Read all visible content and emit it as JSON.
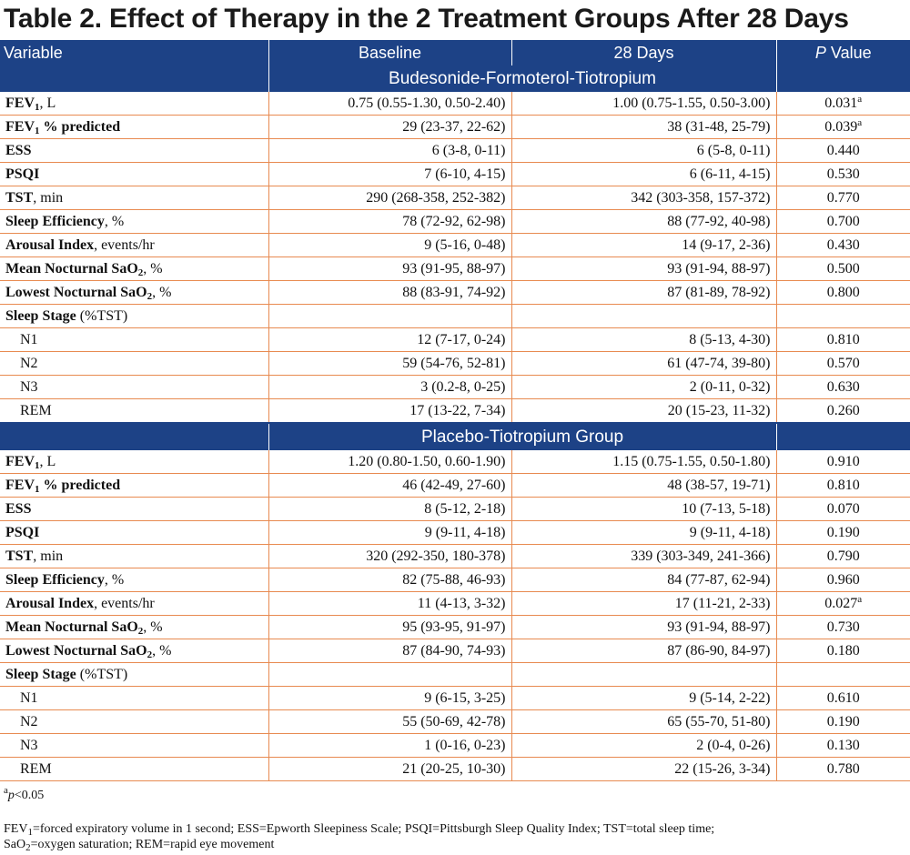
{
  "title": "Table 2. Effect of Therapy in the 2 Treatment Groups After 28 Days",
  "header": {
    "variable": "Variable",
    "baseline": "Baseline",
    "days28": "28 Days",
    "p_italic": "P",
    "p_rest": " Value"
  },
  "labels": {
    "fev1_a": "FEV",
    "fev1_sub": "1",
    "fev1_unit": ", L",
    "fev1pct_rest": " % predicted",
    "ess": "ESS",
    "psqi": "PSQI",
    "tst": "TST",
    "tst_unit": ", min",
    "se": "Sleep Efficiency",
    "se_unit": ", %",
    "ai": "Arousal Index",
    "ai_unit": ", events/hr",
    "mean_a": "Mean Nocturnal SaO",
    "sao_sub": "2",
    "pct_unit": ", %",
    "low_a": "Lowest Nocturnal SaO",
    "ss_a": "Sleep Stage",
    "ss_b": " (%TST)",
    "n1": "N1",
    "n2": "N2",
    "n3": "N3",
    "rem": "REM",
    "sup_a": "a"
  },
  "group1": {
    "name": "Budesonide-Formoterol-Tiotropium",
    "fev1": [
      "0.75 (0.55-1.30, 0.50-2.40)",
      "1.00 (0.75-1.55, 0.50-3.00)",
      "0.031"
    ],
    "fev1pct": [
      "29 (23-37, 22-62)",
      "38 (31-48, 25-79)",
      "0.039"
    ],
    "ess": [
      "6 (3-8, 0-11)",
      "6 (5-8, 0-11)",
      "0.440"
    ],
    "psqi": [
      "7 (6-10, 4-15)",
      "6 (6-11, 4-15)",
      "0.530"
    ],
    "tst": [
      "290 (268-358, 252-382)",
      "342 (303-358, 157-372)",
      "0.770"
    ],
    "se": [
      "78 (72-92, 62-98)",
      "88 (77-92, 40-98)",
      "0.700"
    ],
    "ai": [
      "9 (5-16, 0-48)",
      "14 (9-17, 2-36)",
      "0.430"
    ],
    "mean": [
      "93 (91-95, 88-97)",
      "93 (91-94, 88-97)",
      "0.500"
    ],
    "low": [
      "88 (83-91, 74-92)",
      "87 (81-89, 78-92)",
      "0.800"
    ],
    "n1": [
      "12 (7-17, 0-24)",
      "8 (5-13, 4-30)",
      "0.810"
    ],
    "n2": [
      "59 (54-76, 52-81)",
      "61 (47-74, 39-80)",
      "0.570"
    ],
    "n3": [
      "3 (0.2-8, 0-25)",
      "2 (0-11, 0-32)",
      "0.630"
    ],
    "rem": [
      "17 (13-22, 7-34)",
      "20 (15-23, 11-32)",
      "0.260"
    ]
  },
  "group2": {
    "name": "Placebo-Tiotropium Group",
    "fev1": [
      "1.20 (0.80-1.50, 0.60-1.90)",
      "1.15 (0.75-1.55, 0.50-1.80)",
      "0.910"
    ],
    "fev1pct": [
      "46 (42-49, 27-60)",
      "48 (38-57, 19-71)",
      "0.810"
    ],
    "ess": [
      "8 (5-12, 2-18)",
      "10 (7-13, 5-18)",
      "0.070"
    ],
    "psqi": [
      "9 (9-11, 4-18)",
      "9 (9-11, 4-18)",
      "0.190"
    ],
    "tst": [
      "320 (292-350, 180-378)",
      "339 (303-349, 241-366)",
      "0.790"
    ],
    "se": [
      "82 (75-88, 46-93)",
      "84 (77-87, 62-94)",
      "0.960"
    ],
    "ai": [
      "11 (4-13, 3-32)",
      "17 (11-21, 2-33)",
      "0.027"
    ],
    "mean": [
      "95 (93-95, 91-97)",
      "93 (91-94, 88-97)",
      "0.730"
    ],
    "low": [
      "87 (84-90, 74-93)",
      "87 (86-90, 84-97)",
      "0.180"
    ],
    "n1": [
      "9 (6-15, 3-25)",
      "9 (5-14, 2-22)",
      "0.610"
    ],
    "n2": [
      "55 (50-69, 42-78)",
      "65 (55-70, 51-80)",
      "0.190"
    ],
    "n3": [
      "1 (0-16, 0-23)",
      "2 (0-4, 0-26)",
      "0.130"
    ],
    "rem": [
      "21 (20-25, 10-30)",
      "22 (15-26, 3-34)",
      "0.780"
    ]
  },
  "footnotes": {
    "sig_sup": "a",
    "sig_p": "p",
    "sig_rest": "<0.05",
    "abbr_1a": "FEV",
    "abbr_1b": "=forced expiratory volume in 1 second; ESS=Epworth Sleepiness Scale; PSQI=Pittsburgh Sleep Quality Index; TST=total sleep time;",
    "abbr_2a": "SaO",
    "abbr_2b": "=oxygen saturation; REM=rapid eye movement"
  },
  "colors": {
    "header_bg": "#1d4286",
    "rule": "#e88a50"
  }
}
